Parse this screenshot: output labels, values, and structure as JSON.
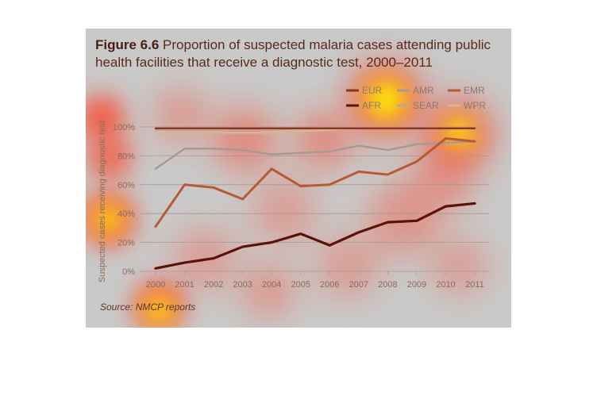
{
  "figure": {
    "title_bold": "Figure 6.6",
    "title_rest": "Proportion of suspected malaria cases attending public health facilities that receive a diagnostic test, 2000–2011",
    "source_label": "Source:",
    "source_text": "NMCP reports"
  },
  "colors": {
    "panel_bg": "#c9c9c9",
    "heat_red": "#ff3b1f",
    "heat_yellow": "#fff200",
    "AFR": "#5c1208",
    "AMR": "#a59a92",
    "EMR": "#b65a36",
    "SEAR": "#c2a59a",
    "EUR": "#8f3420",
    "WPR": "#d2b98f"
  },
  "chart_data": {
    "type": "line",
    "xlabel": "",
    "ylabel": "Suspected cases receiving diagnostic test",
    "ylim": [
      0,
      100
    ],
    "yticks": [
      "0%",
      "20%",
      "40%",
      "60%",
      "80%",
      "100%"
    ],
    "ytick_values": [
      0,
      20,
      40,
      60,
      80,
      100
    ],
    "x": [
      "2000",
      "2001",
      "2002",
      "2003",
      "2004",
      "2005",
      "2006",
      "2007",
      "2008",
      "2009",
      "2010",
      "2011"
    ],
    "legend_position": "top-right",
    "legend_row1": [
      "EUR",
      "AMR",
      "EMR"
    ],
    "legend_row2": [
      "AFR",
      "SEAR",
      "WPR"
    ],
    "series": [
      {
        "name": "AFR",
        "values": [
          2,
          6,
          9,
          17,
          20,
          26,
          18,
          27,
          34,
          35,
          45,
          47
        ]
      },
      {
        "name": "AMR",
        "values": [
          71,
          85,
          85,
          84,
          81,
          82,
          83,
          87,
          84,
          88,
          89,
          90
        ]
      },
      {
        "name": "EMR",
        "values": [
          31,
          60,
          58,
          50,
          71,
          59,
          60,
          69,
          67,
          76,
          92,
          90
        ]
      },
      {
        "name": "SEAR",
        "values": [
          98,
          98,
          98,
          98,
          98,
          99,
          99,
          99,
          99,
          99,
          99,
          99
        ]
      },
      {
        "name": "EUR",
        "values": [
          99,
          99,
          99,
          99,
          99,
          99,
          99,
          99,
          99,
          99,
          99,
          99
        ]
      },
      {
        "name": "WPR",
        "values": [
          96,
          96,
          96,
          96,
          96,
          97,
          98,
          99,
          99,
          99,
          99,
          99
        ]
      }
    ]
  }
}
